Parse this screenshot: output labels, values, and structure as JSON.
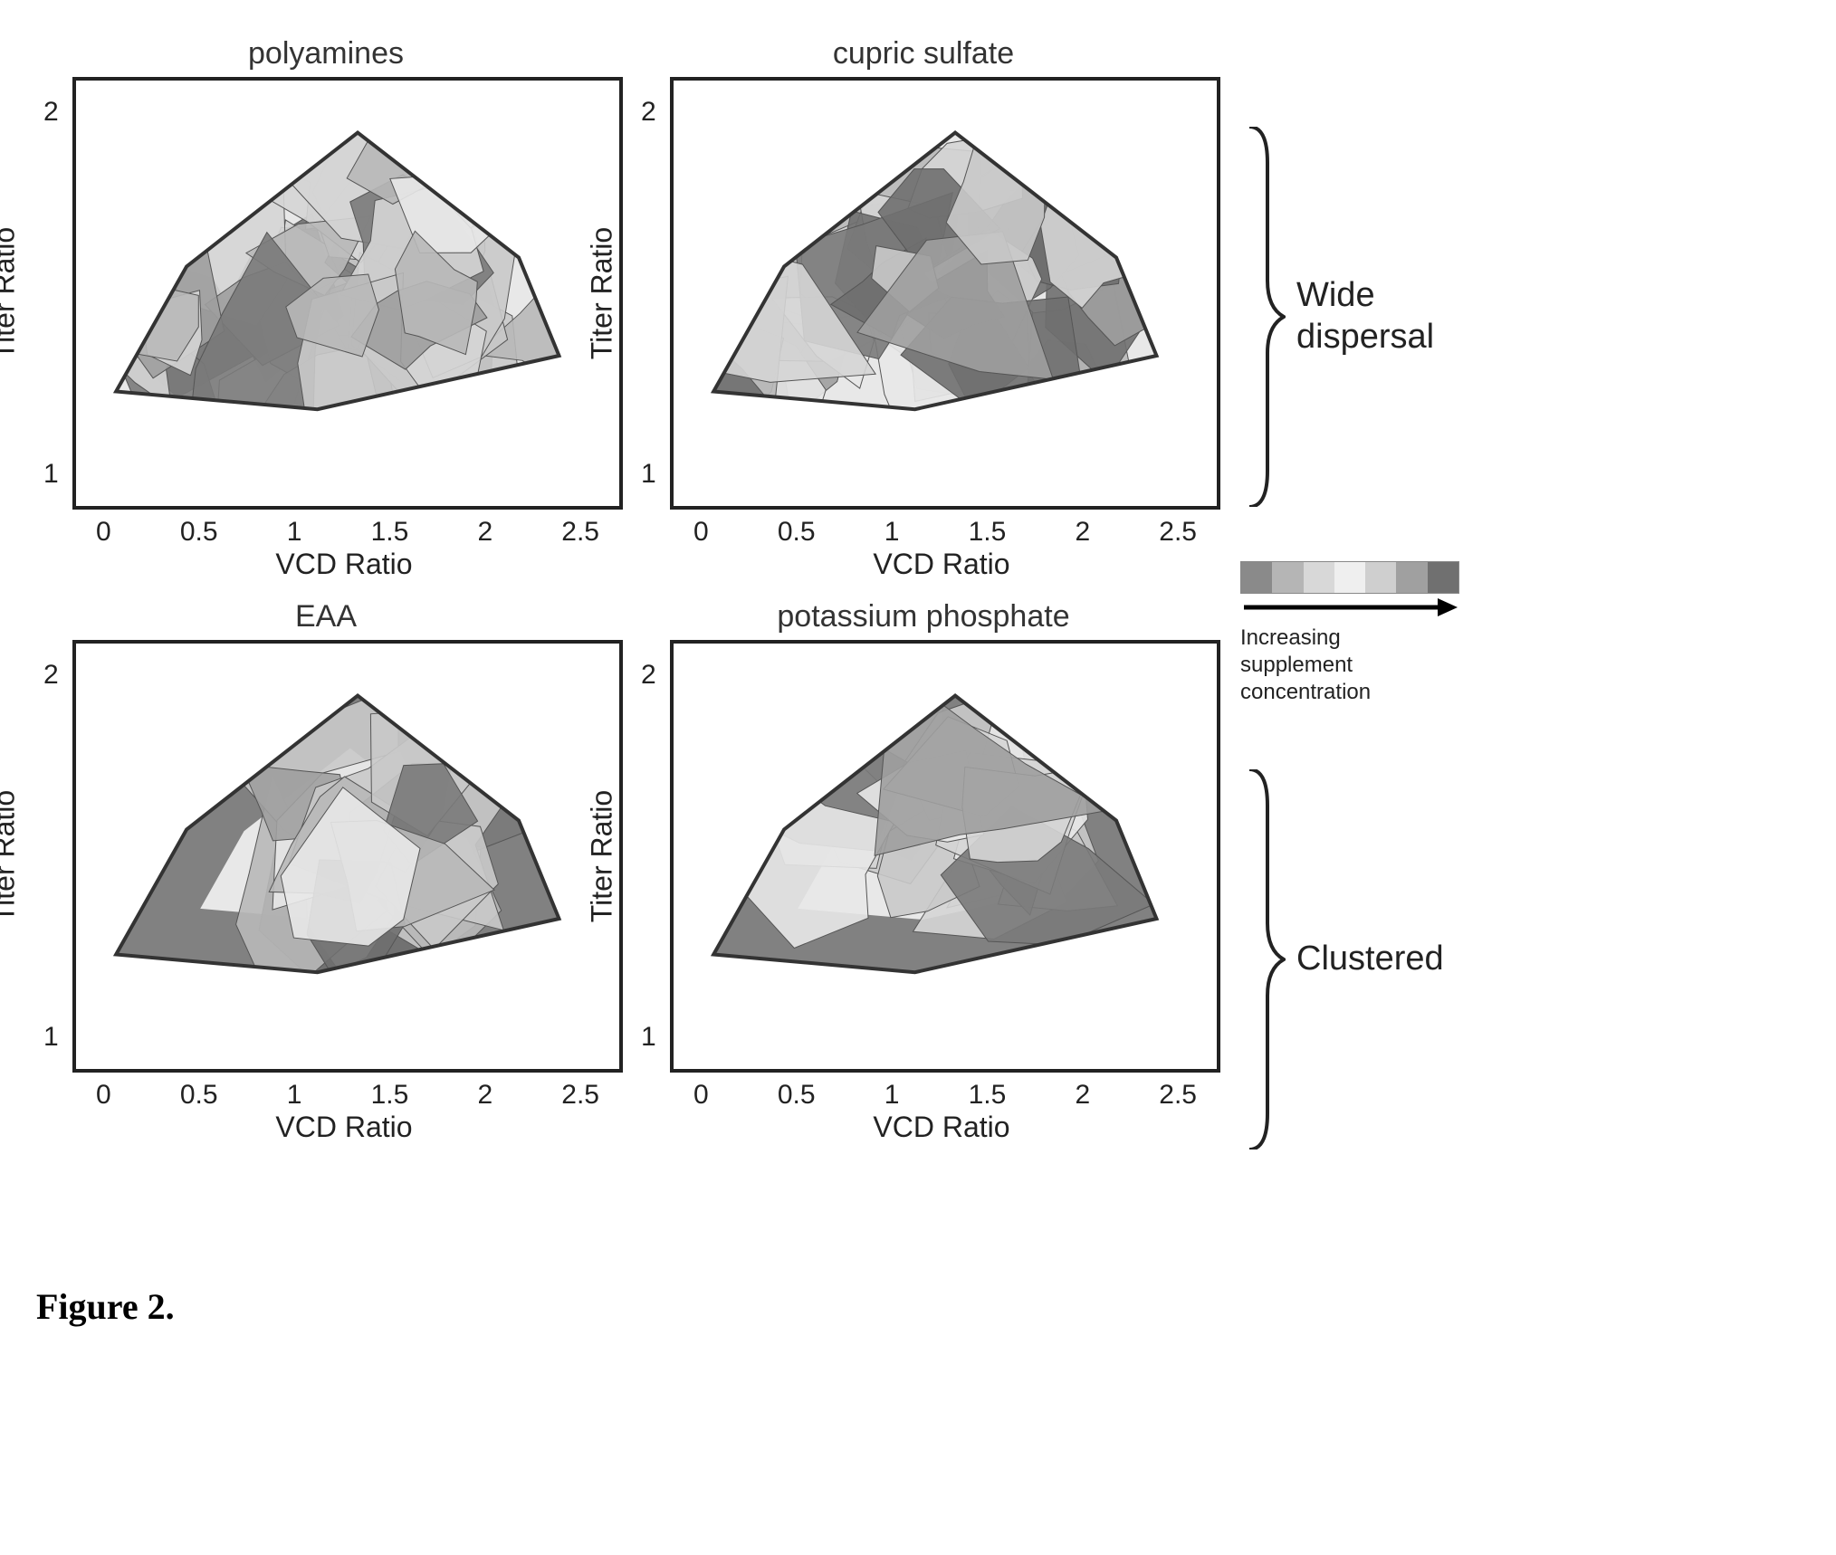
{
  "figure": {
    "caption": "Figure 2.",
    "grid": {
      "rows": 2,
      "cols": 2
    },
    "plots": [
      {
        "id": "polyamines",
        "title": "polyamines",
        "xlabel": "VCD Ratio",
        "ylabel": "Titer Ratio",
        "xlim": [
          0,
          2.5
        ],
        "ylim": [
          0,
          2.2
        ],
        "xticks": [
          0,
          0.5,
          1.0,
          1.5,
          2.0,
          2.5
        ],
        "yticks": [
          1,
          2
        ],
        "type": "contour-fill",
        "hull": [
          [
            0.1,
            0.55
          ],
          [
            0.45,
            1.25
          ],
          [
            1.3,
            2.0
          ],
          [
            2.1,
            1.3
          ],
          [
            2.3,
            0.75
          ],
          [
            1.1,
            0.45
          ]
        ],
        "nature": "wide-dispersal",
        "colors": [
          "#7a7a7a",
          "#b8b8b8",
          "#d5d5d5",
          "#e8e8e8",
          "#c9c9c9",
          "#9e9e9e",
          "#6f6f6f"
        ],
        "border_color": "#333333",
        "background_color": "#ffffff",
        "label_fontsize": 32,
        "title_fontsize": 34
      },
      {
        "id": "cupric-sulfate",
        "title": "cupric sulfate",
        "xlabel": "VCD Ratio",
        "ylabel": "Titer Ratio",
        "xlim": [
          0,
          2.5
        ],
        "ylim": [
          0,
          2.2
        ],
        "xticks": [
          0,
          0.5,
          1.0,
          1.5,
          2.0,
          2.5
        ],
        "yticks": [
          1,
          2
        ],
        "type": "contour-fill",
        "hull": [
          [
            0.1,
            0.55
          ],
          [
            0.45,
            1.25
          ],
          [
            1.3,
            2.0
          ],
          [
            2.1,
            1.3
          ],
          [
            2.3,
            0.75
          ],
          [
            1.1,
            0.45
          ]
        ],
        "nature": "wide-dispersal",
        "colors": [
          "#7a7a7a",
          "#b8b8b8",
          "#d5d5d5",
          "#e8e8e8",
          "#c9c9c9",
          "#9e9e9e",
          "#6f6f6f"
        ],
        "border_color": "#333333",
        "background_color": "#ffffff",
        "label_fontsize": 32,
        "title_fontsize": 34
      },
      {
        "id": "eaa",
        "title": "EAA",
        "xlabel": "VCD Ratio",
        "ylabel": "Titer Ratio",
        "xlim": [
          0,
          2.5
        ],
        "ylim": [
          0,
          2.2
        ],
        "xticks": [
          0,
          0.5,
          1.0,
          1.5,
          2.0,
          2.5
        ],
        "yticks": [
          1,
          2
        ],
        "type": "contour-fill",
        "hull": [
          [
            0.1,
            0.55
          ],
          [
            0.45,
            1.25
          ],
          [
            1.3,
            2.0
          ],
          [
            2.1,
            1.3
          ],
          [
            2.3,
            0.75
          ],
          [
            1.1,
            0.45
          ]
        ],
        "nature": "clustered",
        "colors": [
          "#7a7a7a",
          "#b8b8b8",
          "#d5d5d5",
          "#e8e8e8",
          "#c9c9c9",
          "#9e9e9e",
          "#6f6f6f"
        ],
        "border_color": "#333333",
        "background_color": "#ffffff",
        "label_fontsize": 32,
        "title_fontsize": 34
      },
      {
        "id": "potassium-phosphate",
        "title": "potassium phosphate",
        "xlabel": "VCD Ratio",
        "ylabel": "Titer Ratio",
        "xlim": [
          0,
          2.5
        ],
        "ylim": [
          0,
          2.2
        ],
        "xticks": [
          0,
          0.5,
          1.0,
          1.5,
          2.0,
          2.5
        ],
        "yticks": [
          1,
          2
        ],
        "type": "contour-fill",
        "hull": [
          [
            0.1,
            0.55
          ],
          [
            0.45,
            1.25
          ],
          [
            1.3,
            2.0
          ],
          [
            2.1,
            1.3
          ],
          [
            2.3,
            0.75
          ],
          [
            1.1,
            0.45
          ]
        ],
        "nature": "clustered",
        "colors": [
          "#7a7a7a",
          "#b8b8b8",
          "#d5d5d5",
          "#e8e8e8",
          "#c9c9c9",
          "#9e9e9e",
          "#6f6f6f"
        ],
        "border_color": "#333333",
        "background_color": "#ffffff",
        "label_fontsize": 32,
        "title_fontsize": 34
      }
    ],
    "row_annotations": [
      {
        "rows": [
          0
        ],
        "label": "Wide\ndispersal"
      },
      {
        "rows": [
          1
        ],
        "label": "Clustered"
      }
    ],
    "legend": {
      "gradient_colors": [
        "#8a8a8a",
        "#b5b5b5",
        "#d8d8d8",
        "#efefef",
        "#cfcfcf",
        "#a0a0a0",
        "#707070"
      ],
      "arrow_label": "Increasing\nsupplement\nconcentration",
      "arrow_color": "#000000",
      "fontsize": 24
    }
  }
}
